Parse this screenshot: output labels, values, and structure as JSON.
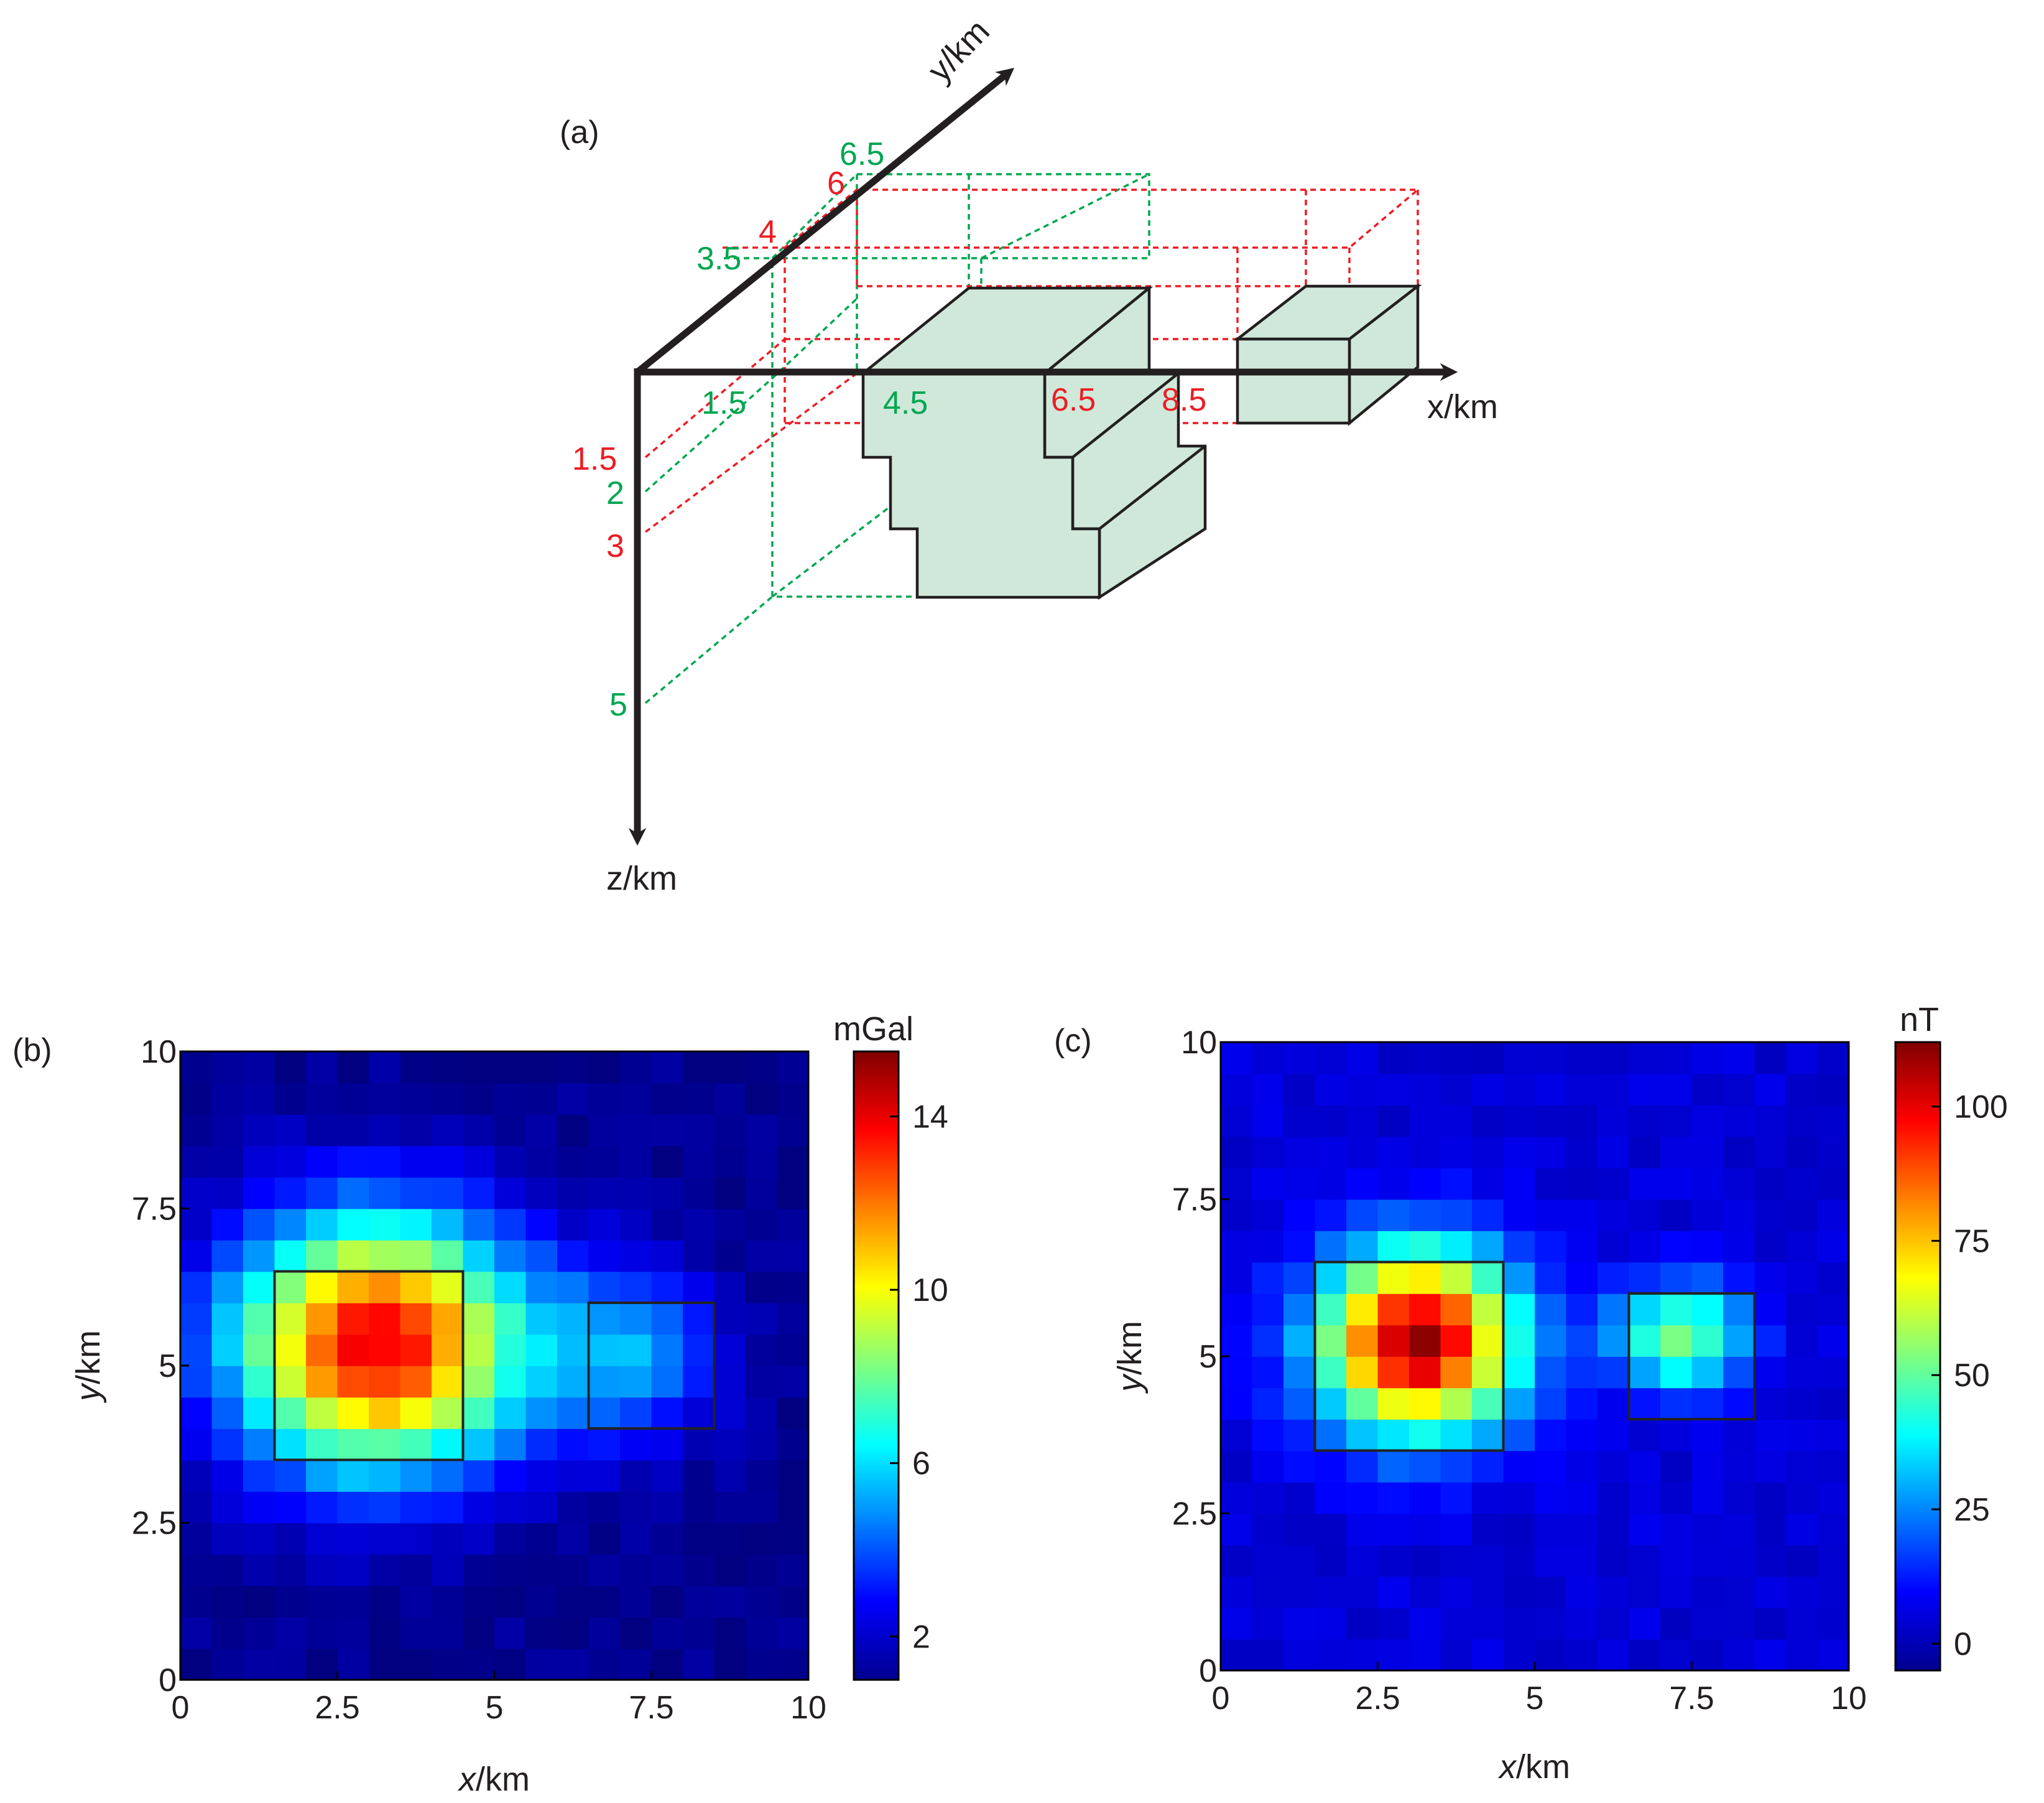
{
  "panel_a": {
    "tag": "(a)",
    "x_axis_label": "x/km",
    "y_axis_label": "y/km",
    "z_axis_label": "z/km",
    "red_labels": {
      "x1": "6.5",
      "x2": "8.5",
      "y1": "4",
      "y2": "6",
      "z1": "1.5",
      "z2": "3"
    },
    "green_labels": {
      "x1": "1.5",
      "x2": "4.5",
      "y1": "3.5",
      "y2": "6.5",
      "z1": "2",
      "z2": "5"
    },
    "colors": {
      "red": "#ed1c24",
      "green": "#00a651",
      "body_fill": "#cfe8d9"
    }
  },
  "chart_data": [
    {
      "type": "heatmap",
      "tag": "(b)",
      "unit": "mGal",
      "xlabel": "x/km",
      "ylabel": "y/km",
      "xlim": [
        0,
        10
      ],
      "ylim": [
        0,
        10
      ],
      "xticks": [
        "0",
        "2.5",
        "5",
        "7.5",
        "10"
      ],
      "yticks": [
        "0",
        "2.5",
        "5",
        "7.5",
        "10"
      ],
      "colorbar_range": [
        1,
        15.5
      ],
      "colorbar_ticks": [
        "2",
        "6",
        "10",
        "14"
      ],
      "colorbar_tick_values": [
        2,
        6,
        10,
        14
      ],
      "grid_size": 20,
      "colormap": "jet",
      "sources": [
        {
          "cx": 3.15,
          "cy": 5.35,
          "sx": 2.3,
          "sy": 2.0,
          "amp": 12.8
        },
        {
          "cx": 7.2,
          "cy": 5.2,
          "sx": 1.4,
          "sy": 1.4,
          "amp": 3.6
        }
      ],
      "background": 1.2,
      "boxes": [
        {
          "x0": 1.5,
          "x1": 4.5,
          "y0": 3.5,
          "y1": 6.5
        },
        {
          "x0": 6.5,
          "x1": 8.5,
          "y0": 4.0,
          "y1": 6.0
        }
      ]
    },
    {
      "type": "heatmap",
      "tag": "(c)",
      "unit": "nT",
      "xlabel": "x/km",
      "ylabel": "y/km",
      "xlim": [
        0,
        10
      ],
      "ylim": [
        0,
        10
      ],
      "xticks": [
        "0",
        "2.5",
        "5",
        "7.5",
        "10"
      ],
      "yticks": [
        "0",
        "2.5",
        "5",
        "7.5",
        "10"
      ],
      "colorbar_range": [
        -5,
        112
      ],
      "colorbar_ticks": [
        "0",
        "25",
        "50",
        "75",
        "100"
      ],
      "colorbar_tick_values": [
        0,
        25,
        50,
        75,
        100
      ],
      "grid_size": 20,
      "colormap": "jet",
      "sources": [
        {
          "cx": 3.15,
          "cy": 5.25,
          "sx": 1.55,
          "sy": 1.45,
          "amp": 105
        },
        {
          "cx": 7.3,
          "cy": 5.3,
          "sx": 1.05,
          "sy": 0.85,
          "amp": 50
        }
      ],
      "background": 5,
      "boxes": [
        {
          "x0": 1.5,
          "x1": 4.5,
          "y0": 3.5,
          "y1": 6.5
        },
        {
          "x0": 6.5,
          "x1": 8.5,
          "y0": 4.0,
          "y1": 6.0
        }
      ]
    }
  ]
}
